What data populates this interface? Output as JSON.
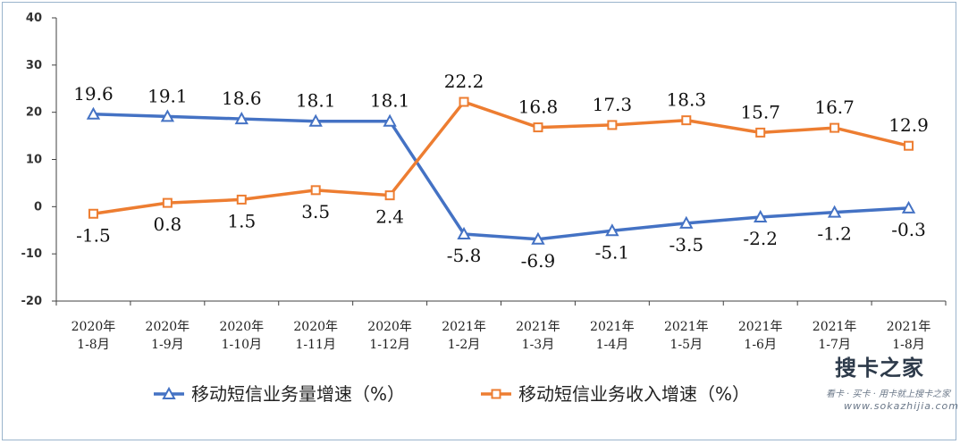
{
  "chart_data": {
    "type": "line",
    "categories": [
      [
        "2020年",
        "1-8月"
      ],
      [
        "2020年",
        "1-9月"
      ],
      [
        "2020年",
        "1-10月"
      ],
      [
        "2020年",
        "1-11月"
      ],
      [
        "2020年",
        "1-12月"
      ],
      [
        "2021年",
        "1-2月"
      ],
      [
        "2021年",
        "1-3月"
      ],
      [
        "2021年",
        "1-4月"
      ],
      [
        "2021年",
        "1-5月"
      ],
      [
        "2021年",
        "1-6月"
      ],
      [
        "2021年",
        "1-7月"
      ],
      [
        "2021年",
        "1-8月"
      ]
    ],
    "series": [
      {
        "name": "移动短信业务量增速（%）",
        "values": [
          19.6,
          19.1,
          18.6,
          18.1,
          18.1,
          -5.8,
          -6.9,
          -5.1,
          -3.5,
          -2.2,
          -1.2,
          -0.3
        ],
        "labels": [
          "19.6",
          "19.1",
          "18.6",
          "18.1",
          "18.1",
          "-5.8",
          "-6.9",
          "-5.1",
          "-3.5",
          "-2.2",
          "-1.2",
          "-0.3"
        ],
        "color": "#4472c4",
        "marker": "triangle"
      },
      {
        "name": "移动短信业务收入增速（%）",
        "values": [
          -1.5,
          0.8,
          1.5,
          3.5,
          2.4,
          22.2,
          16.8,
          17.3,
          18.3,
          15.7,
          16.7,
          12.9
        ],
        "labels": [
          "-1.5",
          "0.8",
          "1.5",
          "3.5",
          "2.4",
          "22.2",
          "16.8",
          "17.3",
          "18.3",
          "15.7",
          "16.7",
          "12.9"
        ],
        "color": "#ed7d31",
        "marker": "square"
      }
    ],
    "ylim": [
      -20,
      40
    ],
    "yticks": [
      "40",
      "30",
      "20",
      "10",
      "0",
      "-10",
      "-20"
    ],
    "ytick_values": [
      40,
      30,
      20,
      10,
      0,
      -10,
      -20
    ],
    "legend_position": "bottom",
    "grid": false
  },
  "watermark": {
    "title": "搜卡之家",
    "subtitle": "看卡 · 买卡 · 用卡就上搜卡之家",
    "url": "www.sokazhijia.com"
  }
}
